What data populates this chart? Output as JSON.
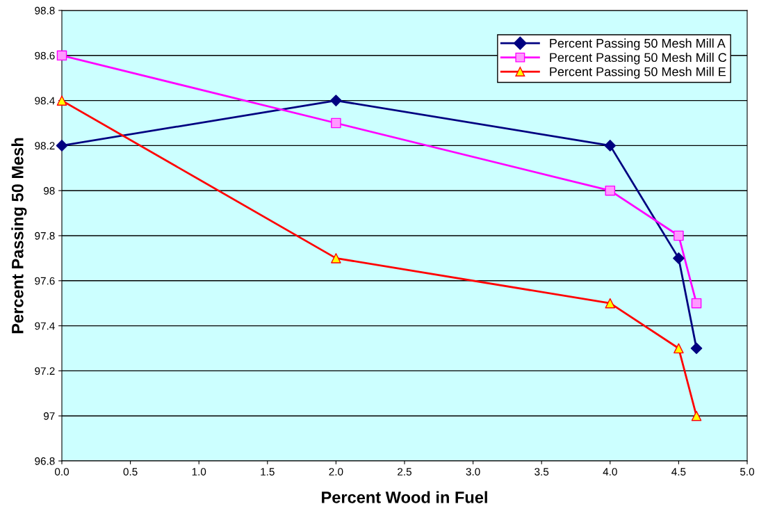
{
  "chart_data": {
    "type": "line",
    "xlabel": "Percent Wood in Fuel",
    "ylabel": "Percent Passing 50 Mesh",
    "series": [
      {
        "name": "Percent Passing 50 Mesh Mill A",
        "color": "#000080",
        "marker": "diamond",
        "colors": [
          "#000080",
          "#000080",
          "#000080",
          "#000080",
          "#000080"
        ],
        "x": [
          0,
          2,
          4,
          4.5,
          4.63
        ],
        "values": [
          98.2,
          98.4,
          98.2,
          97.7,
          97.3
        ]
      },
      {
        "name": "Percent Passing 50 Mesh Mill C",
        "color": "#ff00ff",
        "marker": "square",
        "colors": [
          "#ff99ff",
          "#ff99ff",
          "#ff99ff",
          "#ff99ff",
          "#ff99ff"
        ],
        "x": [
          0,
          2,
          4,
          4.5,
          4.63
        ],
        "values": [
          98.6,
          98.3,
          98.0,
          97.8,
          97.5
        ]
      },
      {
        "name": "Percent Passing 50 Mesh Mill E",
        "color": "#ff0000",
        "marker": "triangle",
        "colors": [
          "#ffff00",
          "#ffff00",
          "#ffff00",
          "#ffff00",
          "#ffff00"
        ],
        "x": [
          0,
          2,
          4,
          4.5,
          4.63
        ],
        "values": [
          98.4,
          97.7,
          97.5,
          97.3,
          97.0
        ]
      }
    ],
    "xlim": [
      0,
      5
    ],
    "xticks": [
      {
        "value": 0,
        "label": "0.0"
      },
      {
        "value": 0.5,
        "label": "0.5"
      },
      {
        "value": 1,
        "label": "1.0"
      },
      {
        "value": 1.5,
        "label": "1.5"
      },
      {
        "value": 2,
        "label": "2.0"
      },
      {
        "value": 2.5,
        "label": "2.5"
      },
      {
        "value": 3,
        "label": "3.0"
      },
      {
        "value": 3.5,
        "label": "3.5"
      },
      {
        "value": 4,
        "label": "4.0"
      },
      {
        "value": 4.5,
        "label": "4.5"
      },
      {
        "value": 5,
        "label": "5.0"
      }
    ],
    "ylim": [
      96.8,
      98.8
    ],
    "yticks": [
      96.8,
      {
        "value": 97,
        "label": "97"
      },
      97.2,
      97.4,
      97.6,
      97.8,
      {
        "value": 98,
        "label": "98"
      },
      98.2,
      98.4,
      98.6,
      98.8
    ],
    "grid": "y",
    "legend": "top right",
    "line_style": "solid"
  }
}
